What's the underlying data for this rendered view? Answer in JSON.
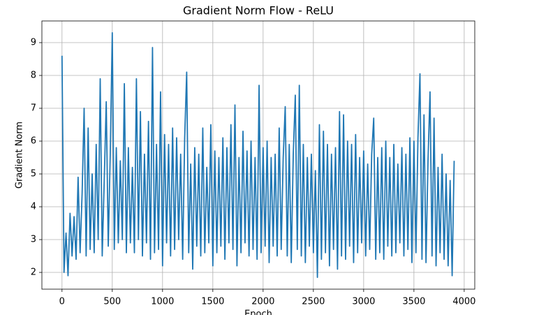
{
  "chart_data": {
    "type": "line",
    "title": "Gradient Norm Flow - ReLU",
    "xlabel": "Epoch",
    "ylabel": "Gradient Norm",
    "x": [
      0,
      20,
      40,
      60,
      80,
      100,
      120,
      140,
      160,
      180,
      200,
      220,
      240,
      260,
      280,
      300,
      320,
      340,
      360,
      380,
      400,
      420,
      440,
      460,
      480,
      500,
      520,
      540,
      560,
      580,
      600,
      620,
      640,
      660,
      680,
      700,
      720,
      740,
      760,
      780,
      800,
      820,
      840,
      860,
      880,
      900,
      920,
      940,
      960,
      980,
      1000,
      1020,
      1040,
      1060,
      1080,
      1100,
      1120,
      1140,
      1160,
      1180,
      1200,
      1220,
      1240,
      1260,
      1280,
      1300,
      1320,
      1340,
      1360,
      1380,
      1400,
      1420,
      1440,
      1460,
      1480,
      1500,
      1520,
      1540,
      1560,
      1580,
      1600,
      1620,
      1640,
      1660,
      1680,
      1700,
      1720,
      1740,
      1760,
      1780,
      1800,
      1820,
      1840,
      1860,
      1880,
      1900,
      1920,
      1940,
      1960,
      1980,
      2000,
      2020,
      2040,
      2060,
      2080,
      2100,
      2120,
      2140,
      2160,
      2180,
      2200,
      2220,
      2240,
      2260,
      2280,
      2300,
      2320,
      2340,
      2360,
      2380,
      2400,
      2420,
      2440,
      2460,
      2480,
      2500,
      2520,
      2540,
      2560,
      2580,
      2600,
      2620,
      2640,
      2660,
      2680,
      2700,
      2720,
      2740,
      2760,
      2780,
      2800,
      2820,
      2840,
      2860,
      2880,
      2900,
      2920,
      2940,
      2960,
      2980,
      3000,
      3020,
      3040,
      3060,
      3080,
      3100,
      3120,
      3140,
      3160,
      3180,
      3200,
      3220,
      3240,
      3260,
      3280,
      3300,
      3320,
      3340,
      3360,
      3380,
      3400,
      3420,
      3440,
      3460,
      3480,
      3500,
      3520,
      3540,
      3560,
      3580,
      3600,
      3620,
      3640,
      3660,
      3680,
      3700,
      3720,
      3740,
      3760,
      3780,
      3800,
      3820,
      3840,
      3860,
      3880,
      3900
    ],
    "values": [
      8.6,
      2.0,
      3.2,
      1.9,
      3.8,
      2.5,
      3.7,
      2.4,
      4.9,
      2.6,
      4.4,
      7.0,
      2.5,
      6.4,
      2.7,
      5.0,
      2.6,
      5.9,
      3.0,
      7.9,
      2.5,
      4.8,
      7.2,
      2.8,
      5.6,
      9.3,
      2.7,
      5.8,
      2.9,
      5.4,
      3.0,
      7.75,
      2.6,
      5.8,
      2.9,
      5.2,
      2.6,
      7.9,
      3.0,
      6.9,
      2.5,
      5.6,
      2.9,
      6.6,
      2.4,
      8.85,
      2.6,
      5.9,
      2.7,
      7.5,
      2.2,
      6.2,
      2.9,
      5.9,
      2.5,
      6.4,
      2.7,
      6.1,
      3.0,
      5.6,
      2.4,
      6.1,
      8.1,
      2.6,
      5.3,
      2.1,
      5.8,
      2.8,
      5.6,
      2.5,
      6.4,
      2.6,
      5.2,
      2.9,
      6.5,
      2.2,
      5.7,
      2.6,
      5.5,
      2.8,
      6.1,
      2.4,
      5.8,
      2.9,
      6.5,
      2.7,
      7.1,
      2.2,
      5.5,
      2.6,
      6.3,
      2.9,
      5.7,
      2.5,
      6.0,
      2.7,
      5.5,
      2.4,
      7.7,
      2.6,
      5.8,
      2.8,
      6.0,
      2.3,
      5.5,
      2.8,
      5.6,
      2.5,
      6.4,
      2.7,
      5.5,
      7.05,
      2.5,
      5.9,
      2.3,
      5.6,
      7.4,
      2.7,
      7.7,
      2.5,
      5.9,
      2.3,
      5.5,
      2.8,
      5.6,
      2.6,
      5.1,
      1.85,
      6.5,
      2.4,
      6.3,
      2.6,
      5.9,
      2.2,
      5.6,
      2.7,
      5.8,
      2.1,
      6.9,
      2.5,
      6.8,
      2.4,
      6.0,
      2.8,
      5.9,
      2.3,
      6.2,
      2.6,
      5.5,
      2.9,
      5.7,
      2.5,
      5.3,
      2.7,
      5.6,
      6.7,
      2.4,
      5.5,
      2.6,
      5.8,
      2.4,
      6.0,
      2.8,
      5.5,
      2.5,
      5.9,
      2.6,
      5.3,
      2.9,
      5.8,
      2.5,
      5.6,
      2.7,
      6.1,
      2.3,
      6.0,
      2.6,
      6.1,
      8.05,
      2.4,
      6.8,
      2.3,
      5.4,
      7.5,
      2.5,
      6.7,
      2.2,
      5.2,
      2.6,
      5.6,
      2.4,
      5.0,
      2.2,
      4.8,
      1.9,
      5.4
    ],
    "color": "#1f77b4",
    "xlim": [
      -200,
      4105
    ],
    "ylim": [
      1.49,
      9.66
    ],
    "xticks": [
      0,
      500,
      1000,
      1500,
      2000,
      2500,
      3000,
      3500,
      4000
    ],
    "yticks": [
      2,
      3,
      4,
      5,
      6,
      7,
      8,
      9
    ],
    "grid": true
  }
}
